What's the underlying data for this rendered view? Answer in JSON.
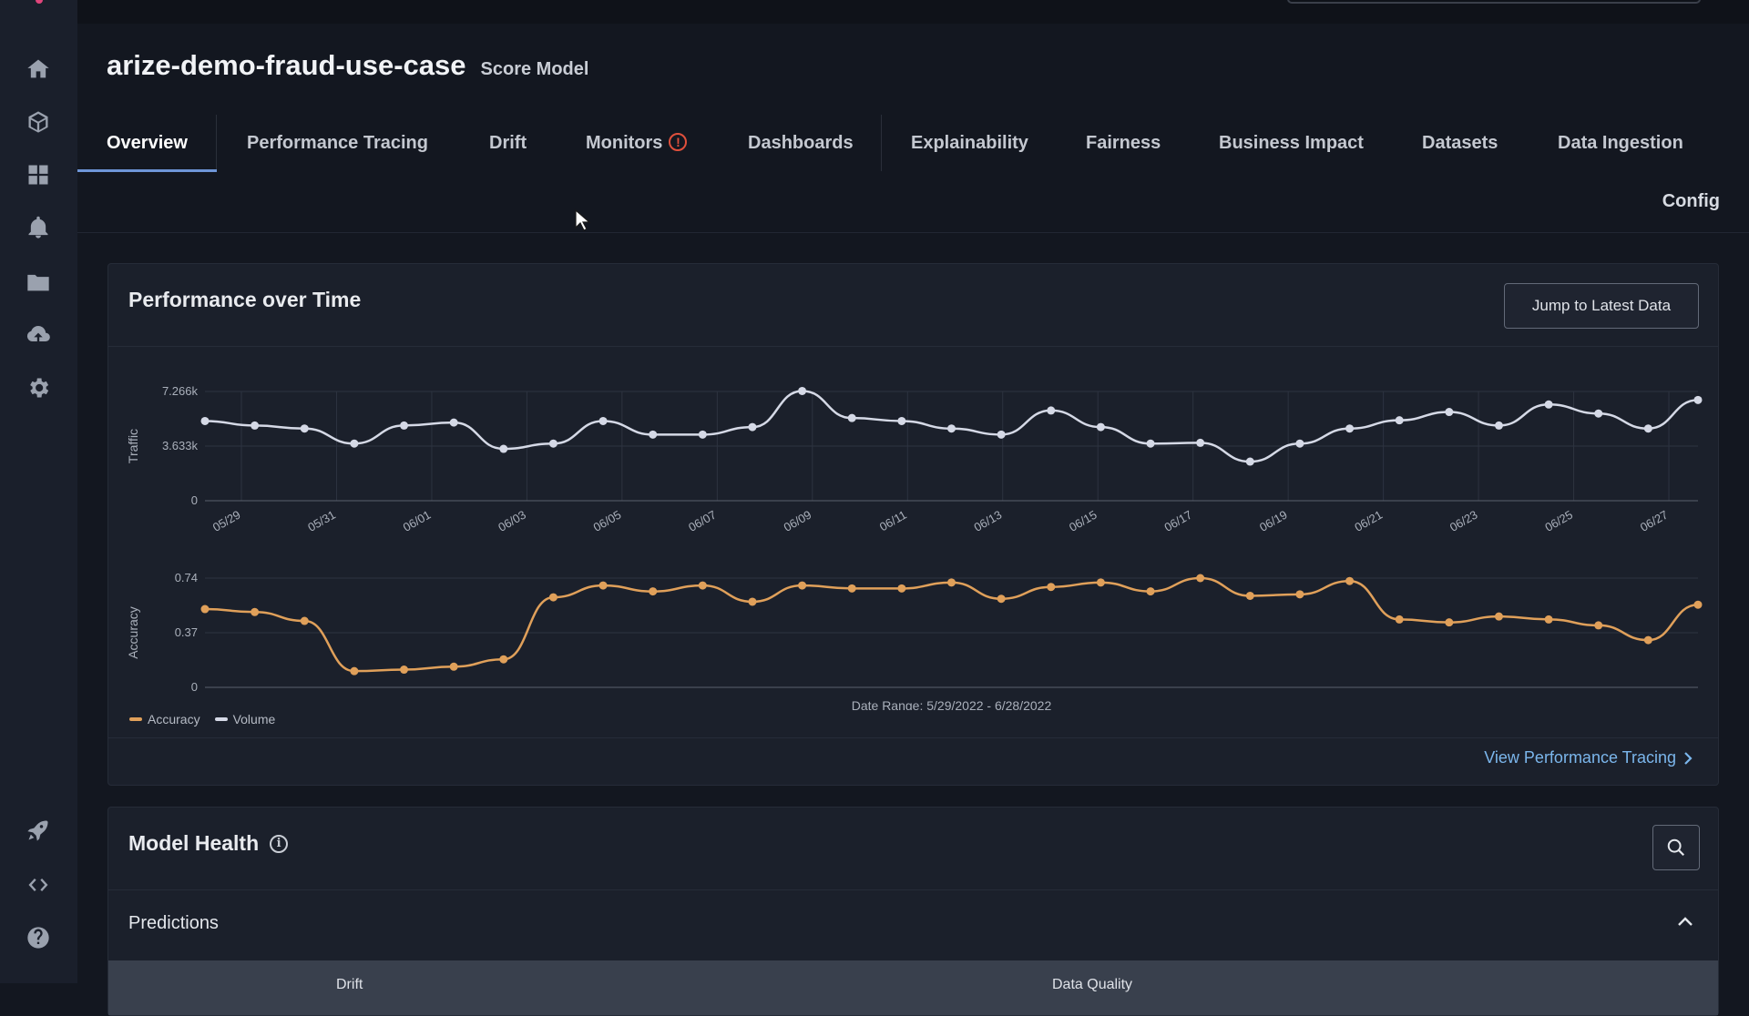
{
  "header": {
    "title": "arize-demo-fraud-use-case",
    "subtitle": "Score Model"
  },
  "tabs": [
    {
      "label": "Overview",
      "active": true
    },
    {
      "label": "Performance Tracing"
    },
    {
      "label": "Drift"
    },
    {
      "label": "Monitors",
      "alert_icon": "alert-circle-icon"
    },
    {
      "label": "Dashboards"
    },
    {
      "label": "Explainability"
    },
    {
      "label": "Fairness"
    },
    {
      "label": "Business Impact"
    },
    {
      "label": "Datasets"
    },
    {
      "label": "Data Ingestion"
    }
  ],
  "config_label": "Config",
  "sidebar_icons": [
    "home-icon",
    "cube-icon",
    "grid-icon",
    "bell-icon",
    "folder-icon",
    "cloud-upload-icon",
    "settings-icon",
    "rocket-icon",
    "code-icon",
    "help-icon"
  ],
  "performance_card": {
    "title": "Performance over Time",
    "jump_button": "Jump to Latest Data",
    "date_range": "Date Range: 5/29/2022 - 6/28/2022",
    "view_link": "View Performance Tracing",
    "legend": [
      {
        "label": "Accuracy",
        "color": "#e0a05a"
      },
      {
        "label": "Volume",
        "color": "#d5d9e6"
      }
    ]
  },
  "chart_data": [
    {
      "type": "line",
      "ylabel": "Traffic",
      "ylim": [
        0,
        7266
      ],
      "yticks": [
        "0",
        "3.633k",
        "7.266k"
      ],
      "xticks": [
        "05/29",
        "05/31",
        "06/01",
        "06/03",
        "06/05",
        "06/07",
        "06/09",
        "06/11",
        "06/13",
        "06/15",
        "06/17",
        "06/19",
        "06/21",
        "06/23",
        "06/25",
        "06/27"
      ],
      "series": [
        {
          "name": "Volume",
          "color": "#d5d9e6",
          "values": [
            5300,
            5000,
            4800,
            3800,
            5000,
            5200,
            3450,
            3800,
            5300,
            4400,
            4400,
            4900,
            7300,
            5500,
            5300,
            4800,
            4400,
            6000,
            4900,
            3800,
            3850,
            2600,
            3800,
            4800,
            5350,
            5900,
            5000,
            6400,
            5800,
            4800,
            6700
          ]
        }
      ]
    },
    {
      "type": "line",
      "ylabel": "Accuracy",
      "ylim": [
        0,
        0.74
      ],
      "yticks": [
        "0",
        "0.37",
        "0.74"
      ],
      "xlabel": "Date Range: 5/29/2022 - 6/28/2022",
      "series": [
        {
          "name": "Accuracy",
          "color": "#e0a05a",
          "values": [
            0.53,
            0.51,
            0.45,
            0.11,
            0.12,
            0.14,
            0.19,
            0.61,
            0.69,
            0.65,
            0.69,
            0.58,
            0.69,
            0.67,
            0.67,
            0.71,
            0.6,
            0.68,
            0.71,
            0.65,
            0.74,
            0.62,
            0.63,
            0.72,
            0.46,
            0.44,
            0.48,
            0.46,
            0.42,
            0.32,
            0.56
          ]
        }
      ]
    }
  ],
  "health_card": {
    "title": "Model Health",
    "predictions_label": "Predictions",
    "columns": [
      "Drift",
      "Data Quality"
    ]
  }
}
